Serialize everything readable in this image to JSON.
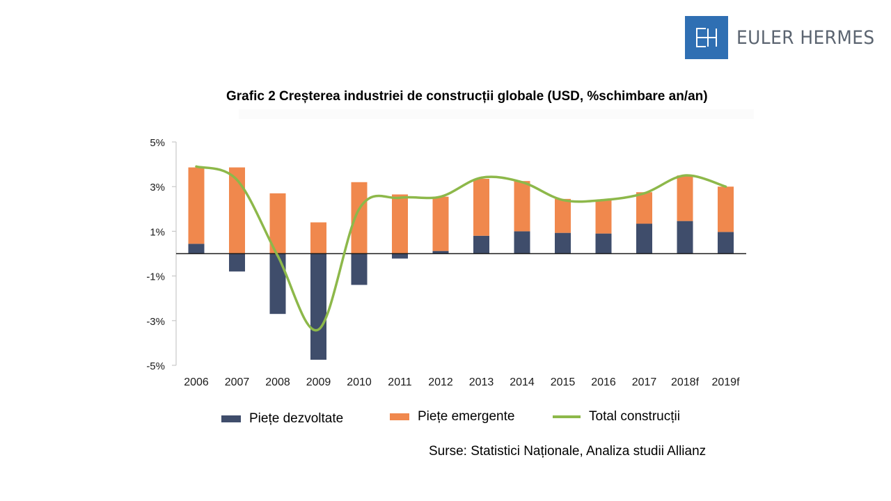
{
  "logo": {
    "text": "EULER HERMES",
    "mark": "EH",
    "color": "#2f6fb3"
  },
  "title": "Grafic 2 Creșterea industriei de construcții globale (USD, %schimbare an/an)",
  "source": "Surse: Statistici Naționale, Analiza studii Allianz",
  "chart_data": {
    "type": "bar",
    "subtype": "stacked-bar-with-line",
    "title": "Grafic 2 Creșterea industriei de construcții globale (USD, %schimbare an/an)",
    "xlabel": "",
    "ylabel": "",
    "ylim": [
      -5,
      5
    ],
    "yticks": [
      5,
      3,
      1,
      -1,
      -3,
      -5
    ],
    "ytick_labels": [
      "5%",
      "3%",
      "1%",
      "-1%",
      "-3%",
      "-5%"
    ],
    "grid": false,
    "legend_position": "bottom",
    "categories": [
      "2006",
      "2007",
      "2008",
      "2009",
      "2010",
      "2011",
      "2012",
      "2013",
      "2014",
      "2015",
      "2016",
      "2017",
      "2018f",
      "2019f"
    ],
    "series": [
      {
        "name": "Piețe dezvoltate",
        "type": "bar",
        "color": "#3f4d6b",
        "values": [
          0.44,
          -0.8,
          -2.7,
          -4.75,
          -1.4,
          -0.22,
          0.12,
          0.8,
          1.0,
          0.93,
          0.9,
          1.34,
          1.46,
          0.97
        ]
      },
      {
        "name": "Piețe emergente",
        "type": "bar",
        "color": "#f0884d",
        "values": [
          3.42,
          3.86,
          2.7,
          1.4,
          3.2,
          2.65,
          2.43,
          2.55,
          2.25,
          1.52,
          1.5,
          1.41,
          2.04,
          2.03
        ]
      },
      {
        "name": "Total construcții",
        "type": "line",
        "color": "#8db84a",
        "values": [
          3.9,
          3.3,
          -0.1,
          -3.4,
          2.0,
          2.5,
          2.55,
          3.4,
          3.2,
          2.4,
          2.4,
          2.7,
          3.5,
          3.0
        ]
      }
    ]
  },
  "legend": [
    {
      "label": "Piețe dezvoltate",
      "color": "#3f4d6b",
      "kind": "box"
    },
    {
      "label": "Piețe emergente",
      "color": "#f0884d",
      "kind": "box"
    },
    {
      "label": "Total construcții",
      "color": "#8db84a",
      "kind": "line"
    }
  ]
}
